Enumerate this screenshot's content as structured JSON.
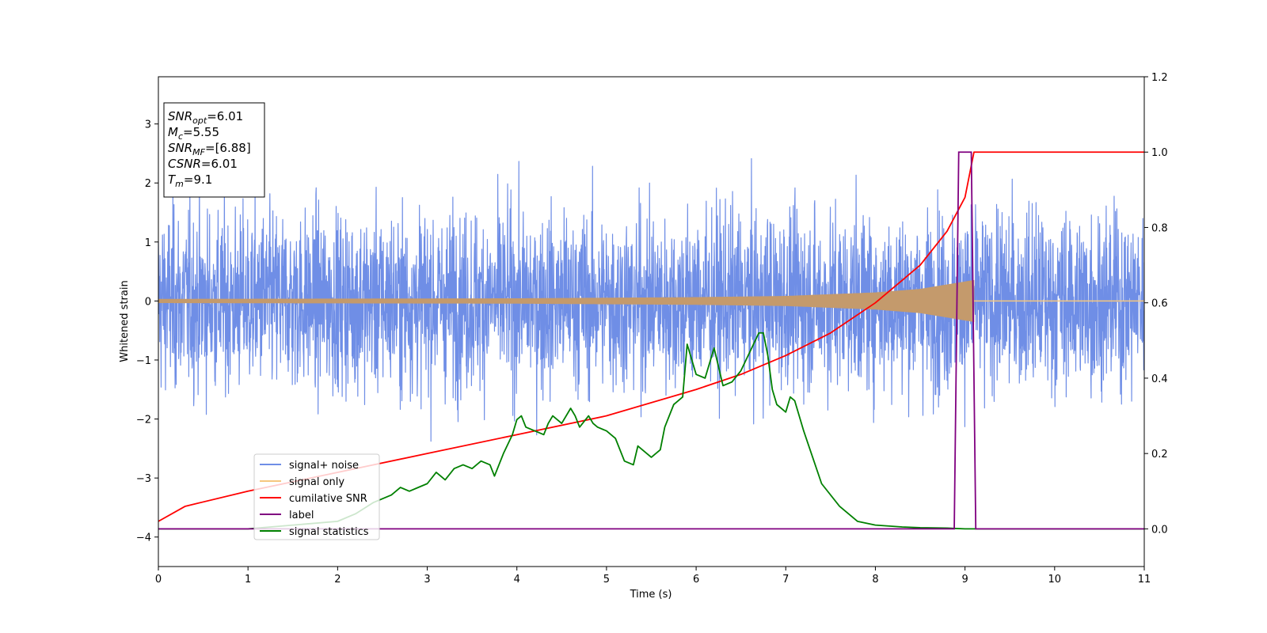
{
  "chart_data": {
    "type": "line",
    "xlabel": "Time (s)",
    "ylabel": "Whitened strain",
    "xlim": [
      0,
      11
    ],
    "ylim": [
      -4.5,
      3.8
    ],
    "y2lim": [
      -0.1,
      1.2
    ],
    "xticks": [
      "0",
      "1",
      "2",
      "3",
      "4",
      "5",
      "6",
      "7",
      "8",
      "9",
      "10",
      "11"
    ],
    "yticks": [
      "3",
      "2",
      "1",
      "0",
      "−1",
      "−2",
      "−3",
      "−4"
    ],
    "y2ticks": [
      "1.2",
      "1.0",
      "0.8",
      "0.6",
      "0.4",
      "0.2",
      "0.0"
    ],
    "legend_position": "lower-left",
    "colors": {
      "signal_noise": "#6f8ee6",
      "signal_only": "#f5c77e",
      "signal_band": "#c49a6c",
      "cumulative_snr": "#ff0000",
      "label": "#800080",
      "signal_statistics": "#008000"
    },
    "annotation": {
      "lines": [
        {
          "main": "SNR",
          "sub": "opt",
          "rest": "=6.01"
        },
        {
          "main": "M",
          "sub": "c",
          "rest": "=5.55"
        },
        {
          "main": "SNR",
          "sub": "MF",
          "rest": "=[6.88]"
        },
        {
          "main": "CSNR",
          "sub": "",
          "rest": "=6.01"
        },
        {
          "main": "T",
          "sub": "m",
          "rest": "=9.1"
        }
      ]
    },
    "series": [
      {
        "name": "signal+ noise",
        "axis": "left",
        "description_of_shape": "dense noise",
        "noise_std": 0.75,
        "range": [
          0,
          11
        ]
      },
      {
        "name": "signal only",
        "axis": "left",
        "envelope": [
          [
            0,
            0.03
          ],
          [
            4,
            0.04
          ],
          [
            6,
            0.06
          ],
          [
            7,
            0.08
          ],
          [
            8,
            0.14
          ],
          [
            8.5,
            0.2
          ],
          [
            9.1,
            0.35
          ]
        ],
        "end": 9.1
      },
      {
        "name": "cumilative SNR",
        "axis": "right",
        "x": [
          0,
          0.3,
          1,
          2,
          3,
          4,
          5,
          6,
          6.5,
          7,
          7.5,
          8,
          8.5,
          8.8,
          9.0,
          9.1,
          11
        ],
        "y": [
          0.02,
          0.06,
          0.1,
          0.15,
          0.2,
          0.25,
          0.3,
          0.37,
          0.41,
          0.46,
          0.52,
          0.6,
          0.7,
          0.79,
          0.88,
          1.0,
          1.0
        ]
      },
      {
        "name": "label",
        "axis": "right",
        "x": [
          0,
          8.88,
          8.93,
          9.07,
          9.12,
          11
        ],
        "y": [
          0,
          0,
          1,
          1,
          0,
          0
        ]
      },
      {
        "name": "signal statistics",
        "axis": "right",
        "x": [
          0,
          1,
          2,
          2.2,
          2.4,
          2.6,
          2.7,
          2.8,
          2.9,
          3.0,
          3.1,
          3.2,
          3.3,
          3.4,
          3.5,
          3.6,
          3.7,
          3.75,
          3.85,
          3.95,
          4.0,
          4.05,
          4.1,
          4.2,
          4.3,
          4.35,
          4.4,
          4.5,
          4.6,
          4.65,
          4.7,
          4.8,
          4.85,
          4.9,
          5.0,
          5.1,
          5.2,
          5.3,
          5.35,
          5.45,
          5.5,
          5.6,
          5.65,
          5.75,
          5.85,
          5.9,
          6.0,
          6.1,
          6.2,
          6.3,
          6.4,
          6.5,
          6.6,
          6.7,
          6.75,
          6.8,
          6.85,
          6.9,
          7.0,
          7.05,
          7.1,
          7.2,
          7.3,
          7.4,
          7.6,
          7.8,
          8.0,
          8.3,
          8.5,
          8.8,
          9.0,
          11
        ],
        "y": [
          0.0,
          0.0,
          0.02,
          0.04,
          0.07,
          0.09,
          0.11,
          0.1,
          0.11,
          0.12,
          0.15,
          0.13,
          0.16,
          0.17,
          0.16,
          0.18,
          0.17,
          0.14,
          0.2,
          0.25,
          0.29,
          0.3,
          0.27,
          0.26,
          0.25,
          0.28,
          0.3,
          0.28,
          0.32,
          0.3,
          0.27,
          0.3,
          0.28,
          0.27,
          0.26,
          0.24,
          0.18,
          0.17,
          0.22,
          0.2,
          0.19,
          0.21,
          0.27,
          0.33,
          0.35,
          0.49,
          0.41,
          0.4,
          0.48,
          0.38,
          0.39,
          0.42,
          0.47,
          0.52,
          0.52,
          0.46,
          0.37,
          0.33,
          0.31,
          0.35,
          0.34,
          0.26,
          0.19,
          0.12,
          0.06,
          0.02,
          0.01,
          0.005,
          0.003,
          0.002,
          0.0,
          0.0
        ]
      }
    ]
  }
}
